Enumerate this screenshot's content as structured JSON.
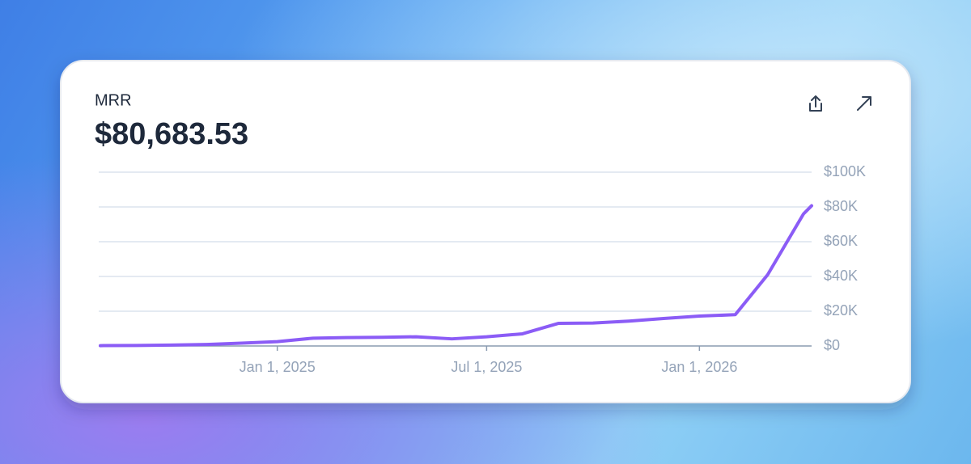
{
  "chart_data": {
    "type": "line",
    "title": "MRR",
    "subtitle": "$80,683.53",
    "x": [
      "2024-08-01",
      "2024-09-01",
      "2024-10-01",
      "2024-11-01",
      "2024-12-01",
      "2025-01-01",
      "2025-02-01",
      "2025-03-01",
      "2025-04-01",
      "2025-05-01",
      "2025-06-01",
      "2025-07-01",
      "2025-08-01",
      "2025-09-01",
      "2025-10-01",
      "2025-11-01",
      "2025-12-01",
      "2026-01-01",
      "2026-02-01",
      "2026-03-01",
      "2026-04-01",
      "2026-04-08"
    ],
    "series": [
      {
        "name": "MRR",
        "color": "#8b5cf6",
        "values": [
          200,
          300,
          500,
          900,
          1600,
          2500,
          4500,
          4800,
          5000,
          5300,
          4100,
          5300,
          7000,
          13000,
          13200,
          14300,
          15800,
          17200,
          18000,
          41000,
          76000,
          80683.53
        ]
      }
    ],
    "xlim": [
      "2024-08-01",
      "2026-04-08"
    ],
    "xticks": [
      {
        "value": "2025-01-01",
        "label": "Jan 1, 2025"
      },
      {
        "value": "2025-07-01",
        "label": "Jul 1, 2025"
      },
      {
        "value": "2026-01-01",
        "label": "Jan 1, 2026"
      }
    ],
    "ylim": [
      0,
      100000
    ],
    "yticks": [
      {
        "value": 0,
        "label": "$0"
      },
      {
        "value": 20000,
        "label": "$20K"
      },
      {
        "value": 40000,
        "label": "$40K"
      },
      {
        "value": 60000,
        "label": "$60K"
      },
      {
        "value": 80000,
        "label": "$80K"
      },
      {
        "value": 100000,
        "label": "$100K"
      }
    ],
    "grid": true
  }
}
